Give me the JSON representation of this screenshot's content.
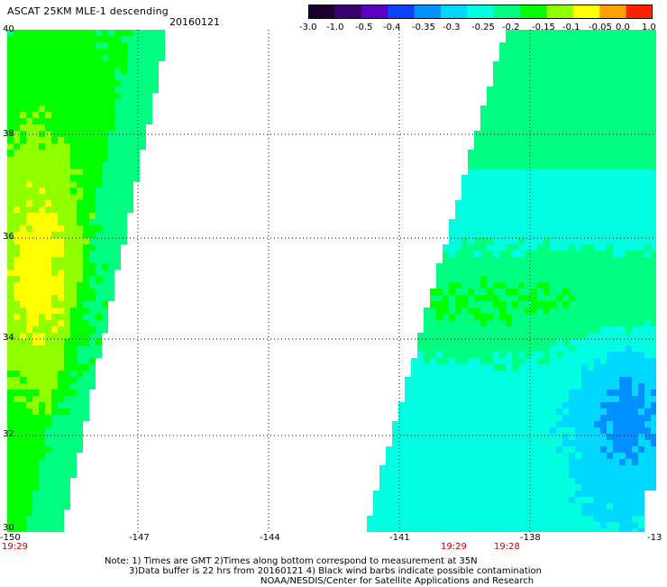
{
  "header": {
    "title": "ASCAT 25KM MLE-1 descending",
    "date": "20160121"
  },
  "colorbar": {
    "tick_labels": [
      "-3.0",
      "-1.0",
      "-0.5",
      "-0.4",
      "-0.35",
      "-0.3",
      "-0.25",
      "-0.2",
      "-0.15",
      "-0.1",
      "-0.05",
      "0.0",
      "1.0"
    ],
    "colors": [
      "#1a0030",
      "#3a0070",
      "#5a00c0",
      "#1040ff",
      "#0090ff",
      "#00d8ff",
      "#00ffe0",
      "#00ff80",
      "#00ff00",
      "#90ff00",
      "#ffff00",
      "#ffa000",
      "#ff2000"
    ]
  },
  "map": {
    "lat_labels": [
      "40",
      "38",
      "36",
      "34",
      "32",
      "30"
    ],
    "lon_labels": [
      "-150",
      "-147",
      "-144",
      "-141",
      "-138",
      "-13"
    ],
    "pass_times": [
      "19:29",
      "19:29",
      "19:28"
    ]
  },
  "footer": {
    "note_line1": "Note: 1) Times are GMT 2)Times along bottom correspond to measurement at 35N",
    "note_line2": "3)Data buffer is 22 hrs from 20160121 4) Black wind barbs indicate possible contamination",
    "credit": "NOAA/NESDIS/Center for Satellite Applications and Research"
  }
}
